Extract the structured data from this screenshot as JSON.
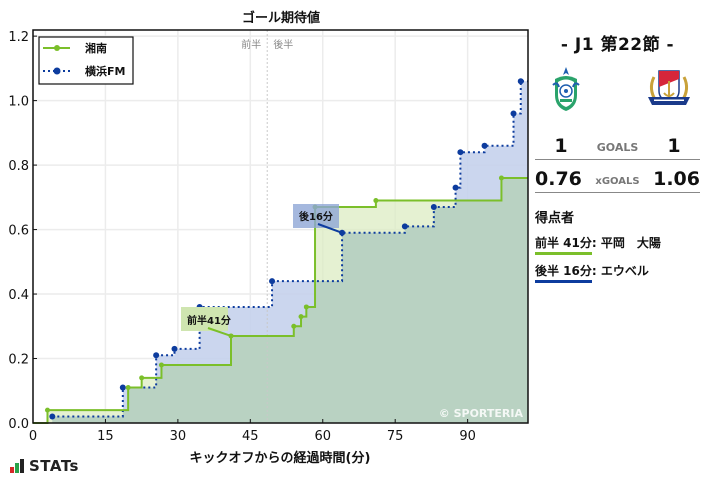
{
  "chart_data": {
    "type": "line",
    "subtype": "step-area",
    "title": "ゴール期待値",
    "xlabel": "キックオフからの経過時間(分)",
    "ylabel": "",
    "xlim": [
      0,
      102.5
    ],
    "ylim": [
      0,
      1.2
    ],
    "x_ticks": [
      0,
      15,
      30,
      45,
      60,
      75,
      90
    ],
    "y_ticks": [
      0.0,
      0.2,
      0.4,
      0.6,
      0.8,
      1.0,
      1.2
    ],
    "y_tick_labels": [
      "0.0",
      "0.2",
      "0.4",
      "0.6",
      "0.8",
      "1.0",
      "1.2"
    ],
    "grid": true,
    "legend_position": "upper left",
    "half_divider": {
      "x": 48.5,
      "first_half_label": "前半",
      "second_half_label": "後半"
    },
    "watermark": "© SPORTERIA",
    "series": [
      {
        "name": "湘南",
        "color": "#7bbf2a",
        "fill": "#dcecc3",
        "line_style": "solid",
        "points": [
          [
            0,
            0.0
          ],
          [
            3,
            0.04
          ],
          [
            19.7,
            0.11
          ],
          [
            22.5,
            0.14
          ],
          [
            26.6,
            0.18
          ],
          [
            41,
            0.27
          ],
          [
            54,
            0.3
          ],
          [
            55.5,
            0.33
          ],
          [
            56.6,
            0.36
          ],
          [
            58.4,
            0.67
          ],
          [
            71,
            0.69
          ],
          [
            97,
            0.76
          ]
        ],
        "final_value": 0.76
      },
      {
        "name": "横浜FM",
        "color": "#0d3c9e",
        "fill": "#c5d2ec",
        "line_style": "dotted",
        "points": [
          [
            4,
            0.02
          ],
          [
            18.6,
            0.11
          ],
          [
            25.5,
            0.21
          ],
          [
            29.3,
            0.23
          ],
          [
            34.5,
            0.36
          ],
          [
            49.5,
            0.44
          ],
          [
            64,
            0.59
          ],
          [
            77,
            0.61
          ],
          [
            83,
            0.67
          ],
          [
            87.5,
            0.73
          ],
          [
            88.5,
            0.84
          ],
          [
            93.5,
            0.86
          ],
          [
            99.5,
            0.96
          ],
          [
            101,
            1.06
          ]
        ],
        "final_value": 1.06
      }
    ],
    "annotations": [
      {
        "text": "前半41分",
        "team": "湘南",
        "x": 41,
        "y": 0.27,
        "box_color": "#cfe5b0"
      },
      {
        "text": "後16分",
        "team": "横浜FM",
        "x": 64,
        "y": 0.59,
        "box_color": "#8ea6d6"
      }
    ]
  },
  "panel": {
    "round_title": "-  J1 第22節  -",
    "home_team": "湘南",
    "away_team": "横浜FM",
    "home_crest_icon": "shonan-bellmare-crest-icon",
    "away_crest_icon": "yokohama-f-marinos-crest-icon",
    "home_goals": "1",
    "away_goals": "1",
    "goals_label": "GOALS",
    "home_xg": "0.76",
    "away_xg": "1.06",
    "xg_label": "xGOALS",
    "scorers_title": "得点者",
    "scorers": [
      {
        "time": "前半 41分",
        "name": ": 平岡　大陽",
        "team": "home"
      },
      {
        "time": "後半 16分",
        "name": ": エウベル",
        "team": "away"
      }
    ]
  },
  "branding": {
    "logo_text": "STATs",
    "logo_icon": "bar-chart-icon"
  }
}
